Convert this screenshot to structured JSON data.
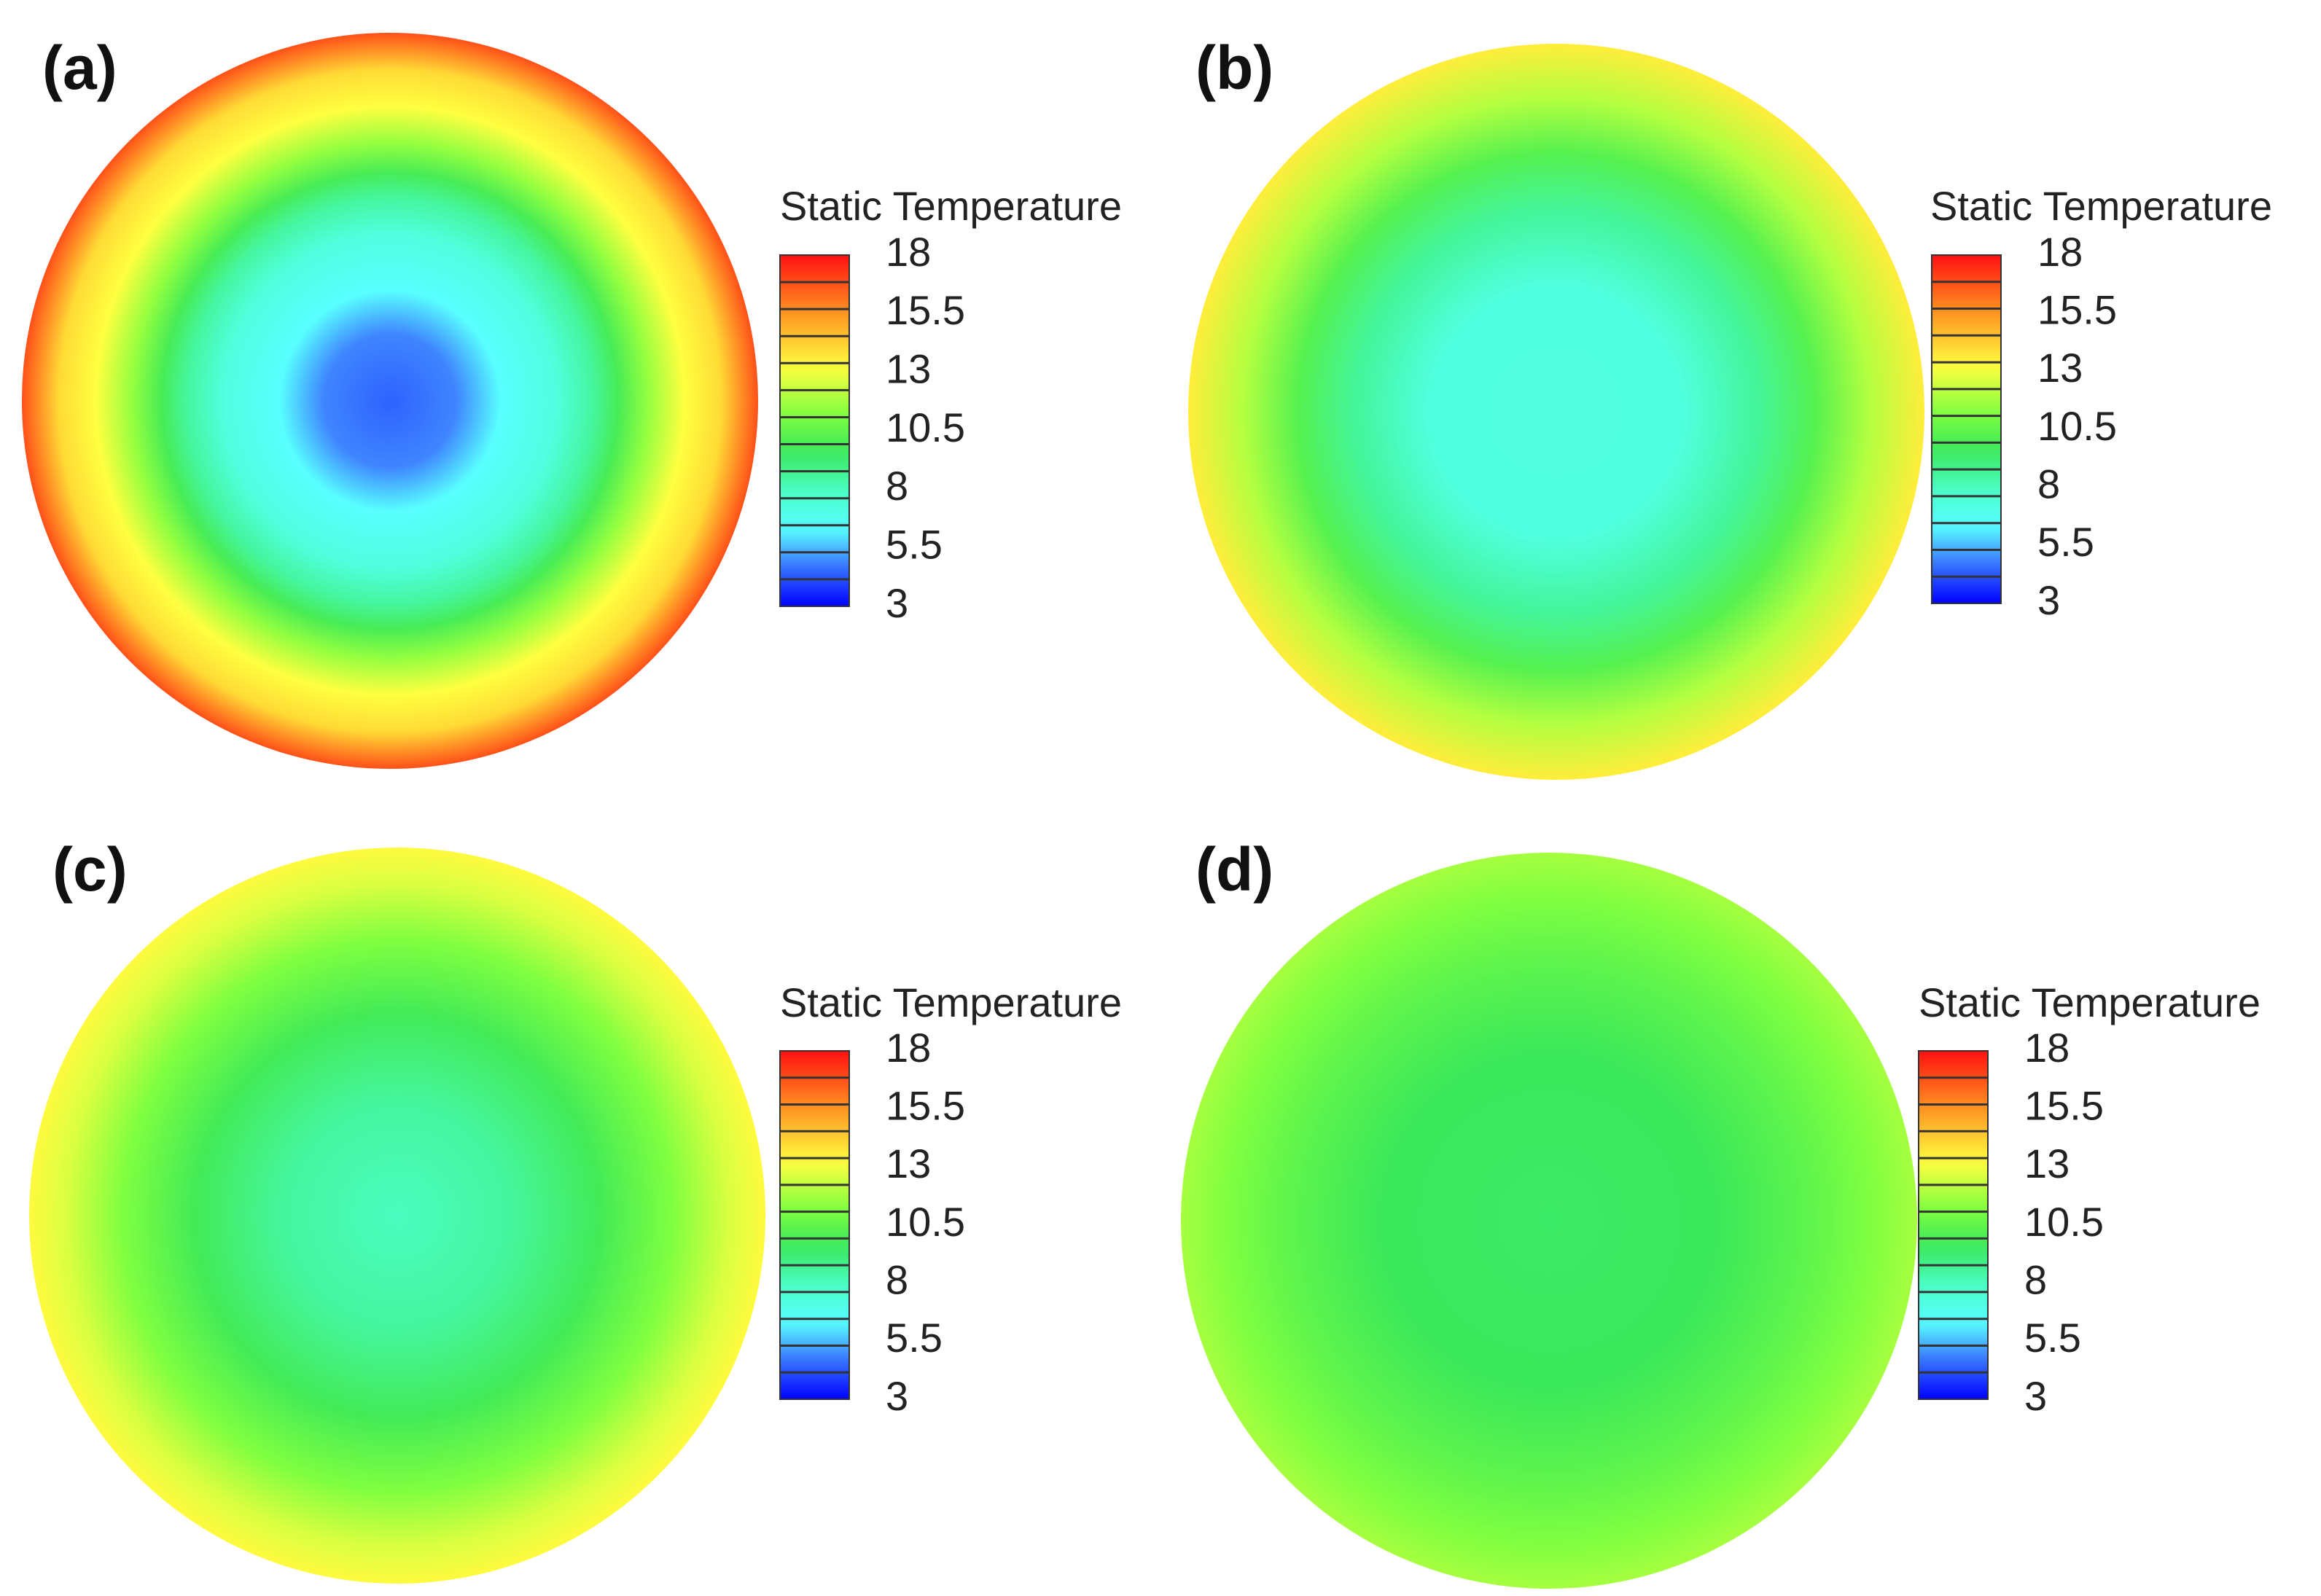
{
  "chart_data": [
    {
      "type": "heatmap",
      "panel_label": "(a)",
      "legend_title": "Static Temperature",
      "scale": {
        "min": 3,
        "max": 18
      },
      "tick_labels": [
        "18",
        "15.5",
        "13",
        "10.5",
        "8",
        "5.5",
        "3"
      ],
      "radial_profile": [
        {
          "r": 0.0,
          "value": 4.4
        },
        {
          "r": 0.18,
          "value": 4.9
        },
        {
          "r": 0.3,
          "value": 6.3
        },
        {
          "r": 0.45,
          "value": 7.2
        },
        {
          "r": 0.55,
          "value": 8.5
        },
        {
          "r": 0.62,
          "value": 9.9
        },
        {
          "r": 0.7,
          "value": 11.5
        },
        {
          "r": 0.8,
          "value": 13.2
        },
        {
          "r": 0.9,
          "value": 14.0
        },
        {
          "r": 1.0,
          "value": 16.8
        }
      ]
    },
    {
      "type": "heatmap",
      "panel_label": "(b)",
      "legend_title": "Static Temperature",
      "scale": {
        "min": 3,
        "max": 18
      },
      "tick_labels": [
        "18",
        "15.5",
        "13",
        "10.5",
        "8",
        "5.5",
        "3"
      ],
      "radial_profile": [
        {
          "r": 0.0,
          "value": 7.2
        },
        {
          "r": 0.35,
          "value": 7.3
        },
        {
          "r": 0.55,
          "value": 8.6
        },
        {
          "r": 0.7,
          "value": 10.2
        },
        {
          "r": 0.85,
          "value": 12.0
        },
        {
          "r": 1.0,
          "value": 13.6
        }
      ]
    },
    {
      "type": "heatmap",
      "panel_label": "(c)",
      "legend_title": "Static Temperature",
      "scale": {
        "min": 3,
        "max": 18
      },
      "tick_labels": [
        "18",
        "15.5",
        "13",
        "10.5",
        "8",
        "5.5",
        "3"
      ],
      "radial_profile": [
        {
          "r": 0.0,
          "value": 8.0
        },
        {
          "r": 0.3,
          "value": 8.5
        },
        {
          "r": 0.55,
          "value": 9.8
        },
        {
          "r": 0.75,
          "value": 11.2
        },
        {
          "r": 0.9,
          "value": 12.6
        },
        {
          "r": 1.0,
          "value": 13.3
        }
      ]
    },
    {
      "type": "heatmap",
      "panel_label": "(d)",
      "legend_title": "Static Temperature",
      "scale": {
        "min": 3,
        "max": 18
      },
      "tick_labels": [
        "18",
        "15.5",
        "13",
        "10.5",
        "8",
        "5.5",
        "3"
      ],
      "radial_profile": [
        {
          "r": 0.0,
          "value": 9.4
        },
        {
          "r": 0.45,
          "value": 9.6
        },
        {
          "r": 0.7,
          "value": 10.4
        },
        {
          "r": 0.88,
          "value": 11.2
        },
        {
          "r": 1.0,
          "value": 11.8
        }
      ]
    }
  ],
  "colormap": [
    {
      "value": 3.0,
      "color": "#0000ff"
    },
    {
      "value": 4.9,
      "color": "#3f85ff"
    },
    {
      "value": 6.3,
      "color": "#58ffff"
    },
    {
      "value": 7.8,
      "color": "#4cffcc"
    },
    {
      "value": 9.6,
      "color": "#3ae85a"
    },
    {
      "value": 11.2,
      "color": "#80ff40"
    },
    {
      "value": 13.2,
      "color": "#ffff40"
    },
    {
      "value": 15.6,
      "color": "#ff9020"
    },
    {
      "value": 18.0,
      "color": "#ff1010"
    }
  ],
  "colors": {
    "background": "#ffffff",
    "text": "#222222"
  }
}
